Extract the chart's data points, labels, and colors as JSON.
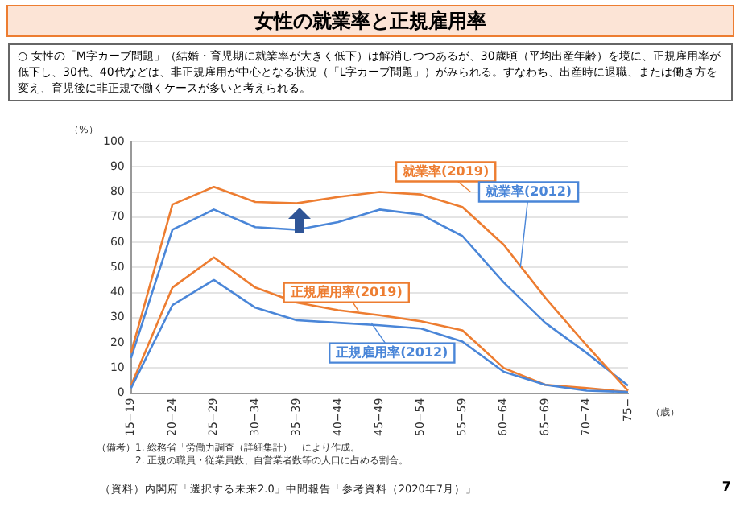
{
  "chart_data": {
    "type": "line",
    "title": "女性の就業率と正規雇用率",
    "subtitle": "○ 女性の「M字カーブ問題」（結婚・育児期に就業率が大きく低下）は解消しつつあるが、30歳頃（平均出産年齢）を境に、正規雇用率が低下し、30代、40代などは、非正規雇用が中心となる状況（「L字カーブ問題」）がみられる。すなわち、出産時に退職、または働き方を変え、育児後に非正規で働くケースが多いと考えられる。",
    "ylabel": "（%）",
    "xlabel": "（歳）",
    "categories": [
      "15−19",
      "20−24",
      "25−29",
      "30−34",
      "35−39",
      "40−44",
      "45−49",
      "50−54",
      "55−59",
      "60−64",
      "65−69",
      "70−74",
      "75−"
    ],
    "ylim": [
      0,
      100
    ],
    "yticks": [
      0,
      10,
      20,
      30,
      40,
      50,
      60,
      70,
      80,
      90,
      100
    ],
    "grid": "y",
    "marker": "none",
    "line_style": "solid",
    "series": [
      {
        "name": "就業率(2019)",
        "color": "#ed7d31",
        "values": [
          16,
          75,
          82,
          76,
          75.5,
          78,
          80,
          79,
          74,
          59,
          38,
          19,
          1
        ]
      },
      {
        "name": "就業率(2012)",
        "color": "#4a86d8",
        "values": [
          14,
          65,
          73,
          66,
          65,
          68,
          73,
          71,
          62.5,
          44,
          28,
          16,
          3
        ]
      },
      {
        "name": "正規雇用率(2012)",
        "color": "#4a86d8",
        "values": [
          2,
          35,
          45,
          34,
          29,
          28,
          27,
          25.7,
          20.5,
          8.5,
          3.3,
          1,
          0.5
        ]
      },
      {
        "name": "正規雇用率(2019)",
        "color": "#ed7d31",
        "values": [
          3,
          42,
          54,
          42,
          36,
          33,
          31,
          28.6,
          25,
          10,
          3.3,
          2,
          0.5
        ]
      }
    ],
    "annotations": [
      "（備考）1. 総務省「労働力調査（詳細集計）」により作成。",
      "2. 正規の職員・従業員数、自営業者数等の人口に占める割合。",
      "（資料）内閣府「選択する未来2.0」中間報告「参考資料（2020年7月）」",
      "7"
    ]
  }
}
